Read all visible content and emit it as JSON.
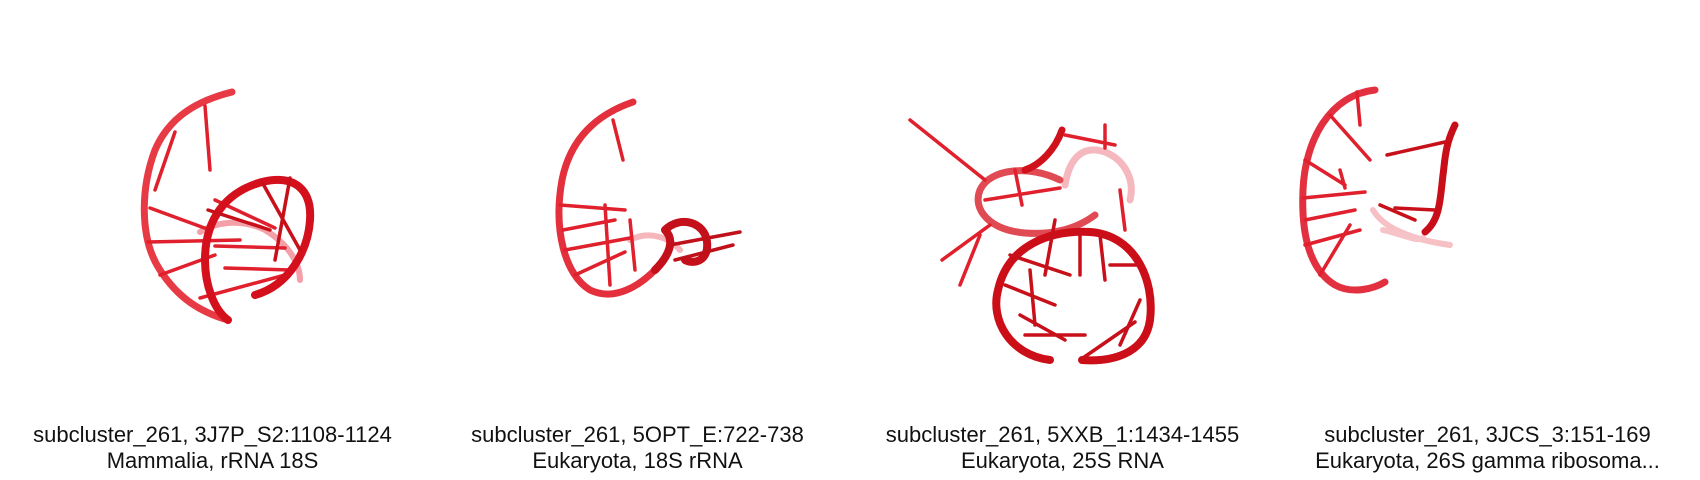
{
  "colors": {
    "strand_dark": "#b0000c",
    "strand": "#e0101c",
    "strand_light": "#f08088",
    "background": "#ffffff"
  },
  "panels": [
    {
      "icon": "rna-structure-icon",
      "title": "subcluster_261, 3J7P_S2:1108-1124",
      "subtitle": "Mammalia, rRNA 18S"
    },
    {
      "icon": "rna-structure-icon",
      "title": "subcluster_261, 5OPT_E:722-738",
      "subtitle": "Eukaryota, 18S rRNA"
    },
    {
      "icon": "rna-structure-icon",
      "title": "subcluster_261, 5XXB_1:1434-1455",
      "subtitle": "Eukaryota, 25S RNA"
    },
    {
      "icon": "rna-structure-icon",
      "title": "subcluster_261, 3JCS_3:151-169",
      "subtitle": "Eukaryota, 26S gamma ribosoma..."
    }
  ]
}
